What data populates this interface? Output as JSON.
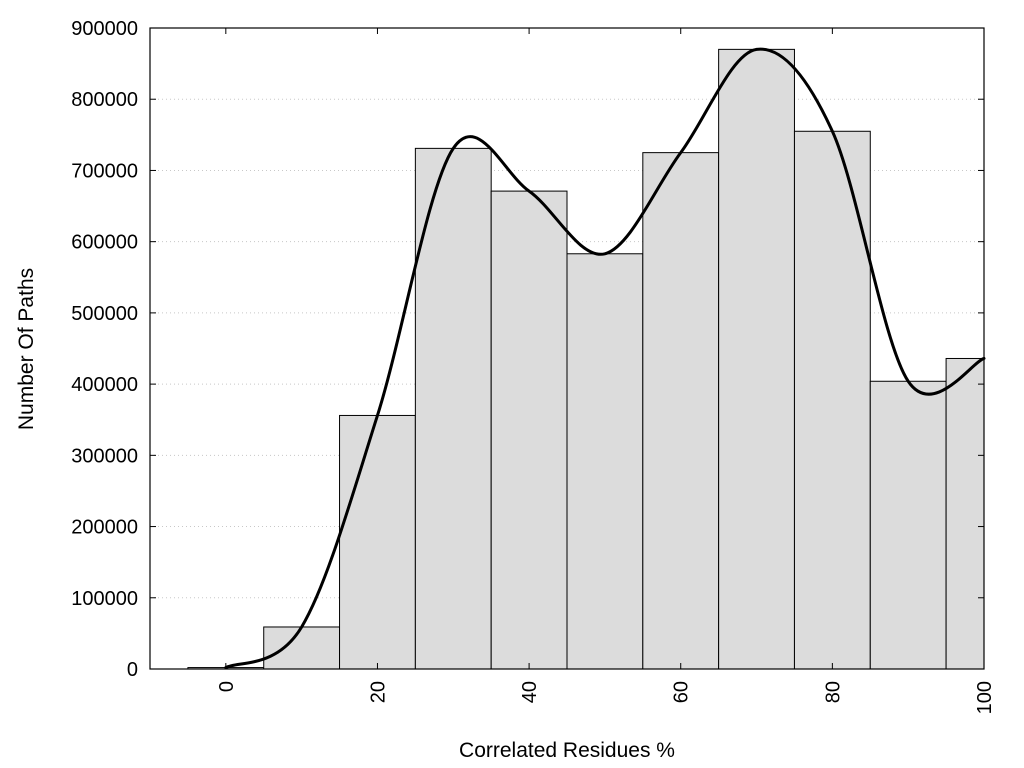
{
  "chart_data": {
    "type": "bar",
    "title": "",
    "xlabel": "Correlated Residues %",
    "ylabel": "Number Of Paths",
    "xlim": [
      -10,
      100
    ],
    "ylim": [
      0,
      900000
    ],
    "x_ticks": [
      "0",
      "20",
      "40",
      "60",
      "80",
      "100"
    ],
    "x_tick_values": [
      0,
      20,
      40,
      60,
      80,
      100
    ],
    "y_ticks": [
      "0",
      "100000",
      "200000",
      "300000",
      "400000",
      "500000",
      "600000",
      "700000",
      "800000",
      "900000"
    ],
    "y_tick_values": [
      0,
      100000,
      200000,
      300000,
      400000,
      500000,
      600000,
      700000,
      800000,
      900000
    ],
    "grid": "horizontal-dotted",
    "bar_color": "#dcdcdc",
    "bars": {
      "x": [
        0,
        10,
        20,
        30,
        40,
        50,
        60,
        70,
        80,
        90,
        100
      ],
      "values": [
        2000,
        59000,
        356000,
        731000,
        671000,
        583000,
        725000,
        870000,
        755000,
        404000,
        436000
      ],
      "bin_width": 10
    },
    "curve": {
      "x": [
        0,
        10,
        20,
        30,
        40,
        50,
        60,
        70,
        80,
        90,
        100
      ],
      "values": [
        2000,
        59000,
        356000,
        731000,
        671000,
        583000,
        725000,
        870000,
        755000,
        404000,
        436000
      ]
    }
  }
}
